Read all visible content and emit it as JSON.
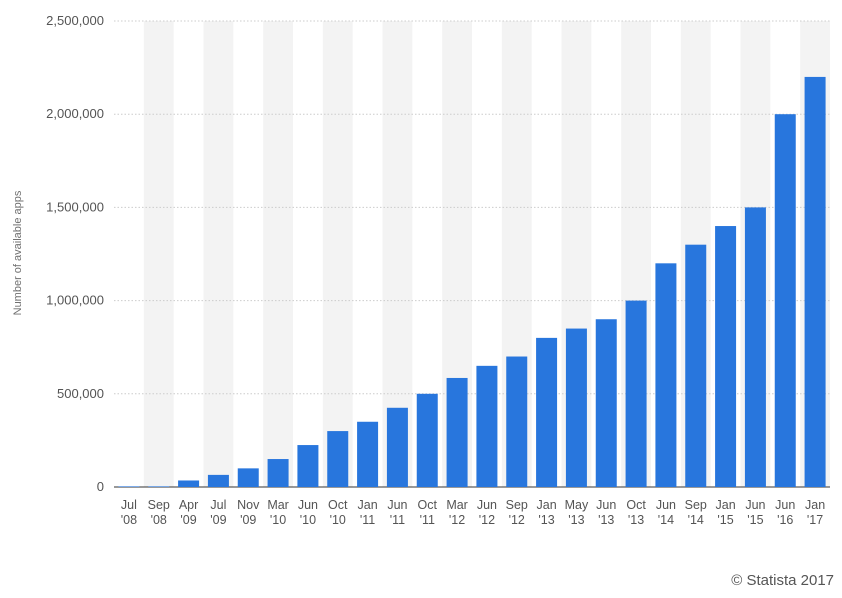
{
  "chart_data": {
    "type": "bar",
    "ylabel": "Number of available apps",
    "ylim": [
      0,
      2500000
    ],
    "yticks": [
      0,
      500000,
      1000000,
      1500000,
      2000000,
      2500000
    ],
    "ytick_labels": [
      "0",
      "500,000",
      "1,000,000",
      "1,500,000",
      "2,000,000",
      "2,500,000"
    ],
    "grid": true,
    "categories": [
      [
        "Jul",
        "'08"
      ],
      [
        "Sep",
        "'08"
      ],
      [
        "Apr",
        "'09"
      ],
      [
        "Jul",
        "'09"
      ],
      [
        "Nov",
        "'09"
      ],
      [
        "Mar",
        "'10"
      ],
      [
        "Jun",
        "'10"
      ],
      [
        "Oct",
        "'10"
      ],
      [
        "Jan",
        "'11"
      ],
      [
        "Jun",
        "'11"
      ],
      [
        "Oct",
        "'11"
      ],
      [
        "Mar",
        "'12"
      ],
      [
        "Jun",
        "'12"
      ],
      [
        "Sep",
        "'12"
      ],
      [
        "Jan",
        "'13"
      ],
      [
        "May",
        "'13"
      ],
      [
        "Jun",
        "'13"
      ],
      [
        "Oct",
        "'13"
      ],
      [
        "Jun",
        "'14"
      ],
      [
        "Sep",
        "'14"
      ],
      [
        "Jan",
        "'15"
      ],
      [
        "Jun",
        "'15"
      ],
      [
        "Jun",
        "'16"
      ],
      [
        "Jan",
        "'17"
      ]
    ],
    "values": [
      800,
      3000,
      35000,
      65000,
      100000,
      150000,
      225000,
      300000,
      350000,
      425000,
      500000,
      585000,
      650000,
      700000,
      800000,
      850000,
      900000,
      1000000,
      1200000,
      1300000,
      1400000,
      1500000,
      2000000,
      2200000
    ],
    "bar_color": "#2876dd",
    "band_color": "#f3f3f3",
    "grid_color": "#cccccc"
  },
  "credit": "© Statista 2017"
}
